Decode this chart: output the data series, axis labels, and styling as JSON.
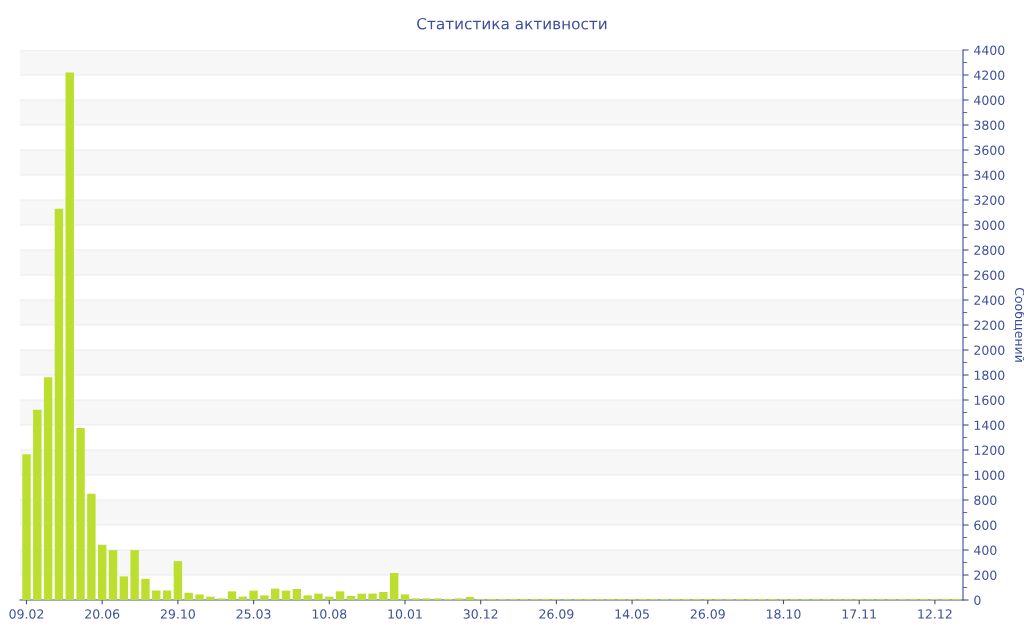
{
  "chart_data": {
    "type": "bar",
    "title": "Статистика активности",
    "ylabel": "Сообщений",
    "categories": [
      "09.02",
      null,
      null,
      null,
      null,
      null,
      null,
      "20.06",
      null,
      null,
      null,
      null,
      null,
      null,
      "29.10",
      null,
      null,
      null,
      null,
      null,
      null,
      "25.03",
      null,
      null,
      null,
      null,
      null,
      null,
      "10.08",
      null,
      null,
      null,
      null,
      null,
      null,
      "10.01",
      null,
      null,
      null,
      null,
      null,
      null,
      "30.12",
      null,
      null,
      null,
      null,
      null,
      null,
      "26.09",
      null,
      null,
      null,
      null,
      null,
      null,
      "14.05",
      null,
      null,
      null,
      null,
      null,
      null,
      "26.09",
      null,
      null,
      null,
      null,
      null,
      null,
      "18.10",
      null,
      null,
      null,
      null,
      null,
      null,
      "17.11",
      null,
      null,
      null,
      null,
      null,
      null,
      "12.12",
      null,
      null
    ],
    "values": [
      1165,
      1522,
      1781,
      3131,
      4220,
      1376,
      850,
      442,
      399,
      189,
      399,
      169,
      76,
      76,
      311,
      58,
      44,
      27,
      13,
      69,
      27,
      75,
      37,
      91,
      75,
      88,
      37,
      51,
      27,
      69,
      32,
      51,
      51,
      64,
      216,
      45,
      13,
      13,
      13,
      8,
      13,
      24,
      8,
      8,
      8,
      8,
      8,
      8,
      8,
      8,
      8,
      8,
      8,
      8,
      8,
      8,
      8,
      8,
      8,
      8,
      8,
      8,
      8,
      8,
      8,
      8,
      8,
      8,
      8,
      8,
      8,
      8,
      8,
      8,
      8,
      8,
      8,
      8,
      8,
      8,
      8,
      8,
      8,
      8,
      8,
      8,
      8
    ],
    "color": "#bcdf2f",
    "ylim": [
      0,
      4400
    ],
    "yticks": [
      0,
      200,
      400,
      600,
      800,
      1000,
      1200,
      1400,
      1600,
      1800,
      2000,
      2200,
      2400,
      2600,
      2800,
      3000,
      3200,
      3400,
      3600,
      3800,
      4000,
      4200,
      4400
    ],
    "grid": "y"
  }
}
